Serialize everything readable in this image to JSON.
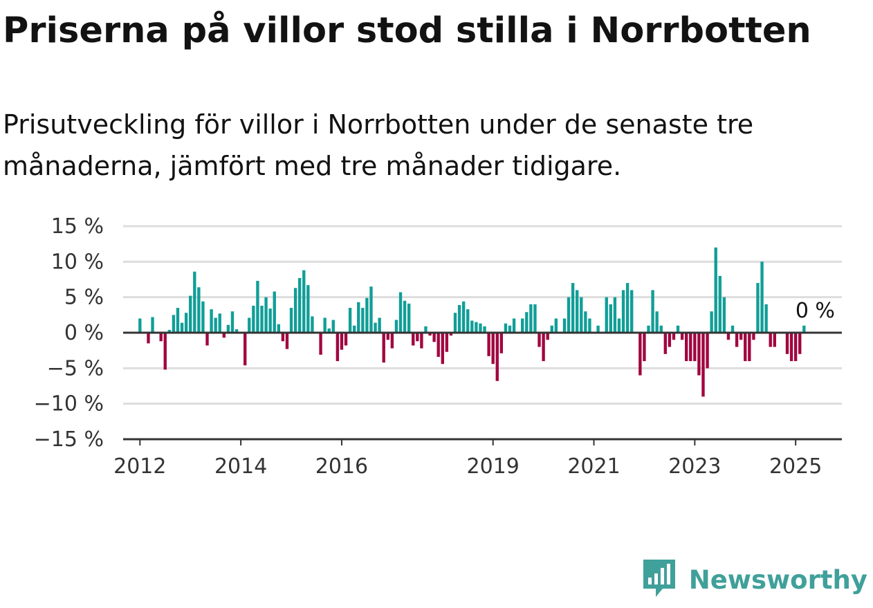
{
  "header": {
    "title": "Priserna på villor stod stilla i Norrbotten",
    "subtitle": "Prisutveckling för villor i Norrbotten under de senaste tre månaderna, jämfört med tre månader tidigare."
  },
  "brand": {
    "name": "Newsworthy",
    "icon": "newsworthy-logo-icon",
    "color": "#40A09A"
  },
  "colors": {
    "positive": "#109E97",
    "negative": "#A1043F",
    "grid": "#DDDDDD",
    "axis": "#333333"
  },
  "chart_data": {
    "type": "bar",
    "ylim": [
      -15,
      15
    ],
    "yticks": [
      15,
      10,
      5,
      0,
      -5,
      -10,
      -15
    ],
    "ytick_labels": [
      "15 %",
      "10 %",
      "5 %",
      "0 %",
      "−5 %",
      "−10 %",
      "−15 %"
    ],
    "xticks": [
      "2012",
      "2014",
      "2016",
      "2019",
      "2021",
      "2023",
      "2025"
    ],
    "xlim": [
      "2011-09",
      "2025-12"
    ],
    "grid": true,
    "highlight_label": "0 %",
    "x": [
      "2012-01",
      "2012-02",
      "2012-03",
      "2012-04",
      "2012-05",
      "2012-06",
      "2012-07",
      "2012-08",
      "2012-09",
      "2012-10",
      "2012-11",
      "2012-12",
      "2013-01",
      "2013-02",
      "2013-03",
      "2013-04",
      "2013-05",
      "2013-06",
      "2013-07",
      "2013-08",
      "2013-09",
      "2013-10",
      "2013-11",
      "2013-12",
      "2014-01",
      "2014-02",
      "2014-03",
      "2014-04",
      "2014-05",
      "2014-06",
      "2014-07",
      "2014-08",
      "2014-09",
      "2014-10",
      "2014-11",
      "2014-12",
      "2015-01",
      "2015-02",
      "2015-03",
      "2015-04",
      "2015-05",
      "2015-06",
      "2015-07",
      "2015-08",
      "2015-09",
      "2015-10",
      "2015-11",
      "2015-12",
      "2016-01",
      "2016-02",
      "2016-03",
      "2016-04",
      "2016-05",
      "2016-06",
      "2016-07",
      "2016-08",
      "2016-09",
      "2016-10",
      "2016-11",
      "2016-12",
      "2017-01",
      "2017-02",
      "2017-03",
      "2017-04",
      "2017-05",
      "2017-06",
      "2017-07",
      "2017-08",
      "2017-09",
      "2017-10",
      "2017-11",
      "2017-12",
      "2018-01",
      "2018-02",
      "2018-03",
      "2018-04",
      "2018-05",
      "2018-06",
      "2018-07",
      "2018-08",
      "2018-09",
      "2018-10",
      "2018-11",
      "2018-12",
      "2019-01",
      "2019-02",
      "2019-03",
      "2019-04",
      "2019-05",
      "2019-06",
      "2019-07",
      "2019-08",
      "2019-09",
      "2019-10",
      "2019-11",
      "2019-12",
      "2020-01",
      "2020-02",
      "2020-03",
      "2020-04",
      "2020-05",
      "2020-06",
      "2020-07",
      "2020-08",
      "2020-09",
      "2020-10",
      "2020-11",
      "2020-12",
      "2021-01",
      "2021-02",
      "2021-03",
      "2021-04",
      "2021-05",
      "2021-06",
      "2021-07",
      "2021-08",
      "2021-09",
      "2021-10",
      "2021-11",
      "2021-12",
      "2022-01",
      "2022-02",
      "2022-03",
      "2022-04",
      "2022-05",
      "2022-06",
      "2022-07",
      "2022-08",
      "2022-09",
      "2022-10",
      "2022-11",
      "2022-12",
      "2023-01",
      "2023-02",
      "2023-03",
      "2023-04",
      "2023-05",
      "2023-06",
      "2023-07",
      "2023-08",
      "2023-09",
      "2023-10",
      "2023-11",
      "2023-12",
      "2024-01",
      "2024-02",
      "2024-03",
      "2024-04",
      "2024-05",
      "2024-06",
      "2024-07",
      "2024-08",
      "2024-09",
      "2024-10",
      "2024-11",
      "2024-12",
      "2025-01",
      "2025-02",
      "2025-03",
      "2025-04"
    ],
    "values": [
      2,
      0,
      -1.5,
      2.2,
      0,
      -1.2,
      -5.2,
      0.4,
      2.5,
      3.5,
      1.4,
      2.8,
      5.2,
      8.6,
      6.4,
      4.4,
      -1.8,
      3.3,
      2.1,
      2.7,
      -0.7,
      1.1,
      3.0,
      0.5,
      0,
      -4.6,
      2.1,
      3.8,
      7.3,
      3.8,
      5.0,
      3.4,
      5.8,
      1.2,
      -1.2,
      -2.3,
      3.5,
      6.3,
      7.7,
      8.8,
      6.7,
      2.3,
      0,
      -3.1,
      2.1,
      0.6,
      1.8,
      -4.0,
      -2.4,
      -1.8,
      3.5,
      1.0,
      4.3,
      3.5,
      4.9,
      6.5,
      1.4,
      2.1,
      -4.2,
      -1.0,
      -2.2,
      1.8,
      5.7,
      4.5,
      4.1,
      -1.8,
      -1.2,
      -2.2,
      0.9,
      -0.4,
      -1.3,
      -3.4,
      -4.4,
      -2.7,
      -0.4,
      2.8,
      3.9,
      4.4,
      3.3,
      1.7,
      1.5,
      1.3,
      0.9,
      -3.3,
      -4.4,
      -6.8,
      -2.9,
      1.3,
      1.0,
      2.0,
      0,
      2.0,
      2.9,
      4.0,
      4.0,
      -2.0,
      -4.0,
      -1.0,
      1.0,
      2.0,
      0,
      2.0,
      5.0,
      7.0,
      6.0,
      5.0,
      3.0,
      2.0,
      0,
      1.0,
      0,
      5.0,
      4.0,
      5.0,
      2.0,
      6.0,
      7.0,
      6.0,
      0,
      -6.0,
      -4.0,
      1.0,
      6.0,
      3.0,
      1.0,
      -3.0,
      -2.0,
      -1.0,
      1.0,
      -1.0,
      -4.0,
      -4.0,
      -4.0,
      -6.0,
      -9.0,
      -5.0,
      3.0,
      12.0,
      8.0,
      5.0,
      -1.0,
      1.0,
      -2.0,
      -1.0,
      -4.0,
      -4.0,
      -1.0,
      7.0,
      10.0,
      4.0,
      -2.0,
      -2.0,
      0,
      0,
      -3.0,
      -4.0,
      -4.0,
      -3.0,
      1.0,
      0
    ]
  }
}
